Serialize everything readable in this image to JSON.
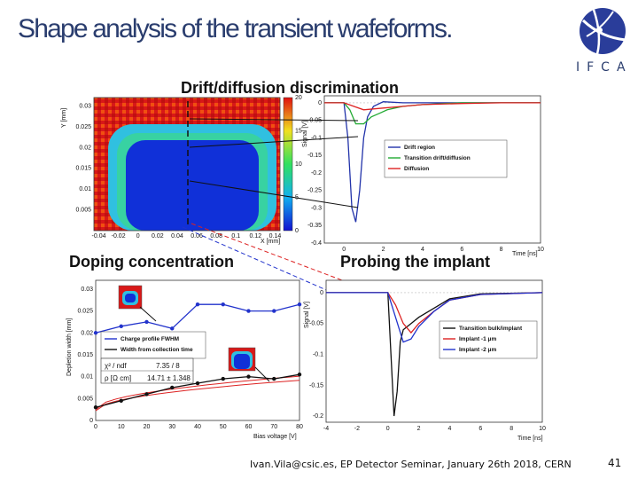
{
  "slide": {
    "title": "Shape analysis of the  transient wafeforms.",
    "logo_text": "IFCA",
    "footer": "Ivan.Vila@csic.es, EP Detector Seminar, January 26th 2018, CERN",
    "page_number": "41"
  },
  "panels": {
    "drift_title": "Drift/diffusion discrimination",
    "doping_title": "Doping concentration",
    "probing_title": "Probing the implant"
  },
  "chart_data": [
    {
      "type": "heatmap",
      "ylabel": "Y [mm]",
      "xlabel": "X [mm]",
      "xlim": [
        -0.045,
        0.145
      ],
      "ylim": [
        0,
        0.032
      ],
      "x_ticks": [
        "-0.04",
        "-0.02",
        "0",
        "0.02",
        "0.04",
        "0.06",
        "0.08",
        "0.1",
        "0.12",
        "0.14"
      ],
      "y_ticks": [
        "0.005",
        "0.01",
        "0.015",
        "0.02",
        "0.025",
        "0.03"
      ],
      "colorbar_ticks": [
        "0",
        "5",
        "10",
        "15",
        "20"
      ],
      "colorbar_range": [
        0,
        20
      ]
    },
    {
      "type": "line",
      "ylabel": "Signal [V]",
      "xlabel": "Time [ns]",
      "xlim": [
        -1,
        10
      ],
      "ylim": [
        -0.4,
        0.02
      ],
      "x_ticks": [
        "0",
        "2",
        "4",
        "6",
        "8",
        "10"
      ],
      "y_ticks": [
        "0",
        "-0.05",
        "-0.1",
        "-0.15",
        "-0.2",
        "-0.25",
        "-0.3",
        "-0.35",
        "-0.4"
      ],
      "legend": "right",
      "colors": [
        "#2233aa",
        "#22aa33",
        "#dd2222"
      ],
      "series": [
        {
          "name": "Drift region",
          "x": [
            -1,
            0,
            0.2,
            0.4,
            0.6,
            0.8,
            1,
            1.2,
            1.5,
            2,
            3,
            4,
            6,
            8,
            10
          ],
          "values": [
            0,
            0,
            -0.1,
            -0.3,
            -0.34,
            -0.25,
            -0.1,
            -0.04,
            -0.01,
            0.003,
            0,
            0,
            0,
            0,
            0
          ]
        },
        {
          "name": "Transition drift/diffusion",
          "x": [
            -1,
            0,
            0.3,
            0.6,
            1,
            1.4,
            1.8,
            2.2,
            3,
            4,
            6,
            8,
            10
          ],
          "values": [
            0,
            0,
            -0.02,
            -0.06,
            -0.06,
            -0.04,
            -0.03,
            -0.02,
            -0.01,
            -0.005,
            0,
            0,
            0
          ]
        },
        {
          "name": "Diffusion",
          "x": [
            -1,
            0,
            0.5,
            1,
            2,
            3,
            4,
            6,
            8,
            10
          ],
          "values": [
            0,
            0,
            -0.01,
            -0.02,
            -0.015,
            -0.01,
            -0.005,
            -0.002,
            0,
            0
          ]
        }
      ]
    },
    {
      "type": "line",
      "ylabel": "Depletion width [mm]",
      "xlabel": "Bias voltage [V]",
      "xlim": [
        0,
        80
      ],
      "ylim": [
        0,
        0.032
      ],
      "x_ticks": [
        "0",
        "10",
        "20",
        "30",
        "40",
        "50",
        "60",
        "70",
        "80"
      ],
      "y_ticks": [
        "0",
        "0.005",
        "0.01",
        "0.015",
        "0.02",
        "0.025",
        "0.03"
      ],
      "legend": "middle-left",
      "colors": [
        "#2233cc",
        "#111111",
        "#dd2222"
      ],
      "series": [
        {
          "name": "Charge profile FWHM",
          "x": [
            0,
            10,
            20,
            30,
            40,
            50,
            60,
            70,
            80
          ],
          "values": [
            0.02,
            0.0215,
            0.0225,
            0.021,
            0.0265,
            0.0265,
            0.025,
            0.025,
            0.0265
          ]
        },
        {
          "name": "Width from collection time",
          "x": [
            0,
            10,
            20,
            30,
            40,
            50,
            60,
            70,
            80
          ],
          "values": [
            0.003,
            0.0045,
            0.006,
            0.0075,
            0.0085,
            0.0095,
            0.01,
            0.0095,
            0.0105
          ]
        }
      ],
      "fit_box": {
        "chi2_label": "χ² / ndf",
        "chi2_value": "7.35 / 8",
        "rho_label": "ρ [Ω cm]",
        "rho_value": "14.71 ± 1.348"
      }
    },
    {
      "type": "line",
      "ylabel": "Signal [V]",
      "xlabel": "Time [ns]",
      "xlim": [
        -4,
        10
      ],
      "ylim": [
        -0.21,
        0.02
      ],
      "x_ticks": [
        "-4",
        "-2",
        "0",
        "2",
        "4",
        "6",
        "8",
        "10"
      ],
      "y_ticks": [
        "0",
        "-0.05",
        "-0.1",
        "-0.15",
        "-0.2"
      ],
      "legend": "right",
      "colors": [
        "#111111",
        "#dd2222",
        "#2233cc"
      ],
      "series": [
        {
          "name": "Transition bulk/implant",
          "x": [
            -4,
            0,
            0.2,
            0.4,
            0.6,
            0.8,
            1,
            1.5,
            2,
            3,
            4,
            6,
            10
          ],
          "values": [
            0,
            0,
            -0.1,
            -0.2,
            -0.16,
            -0.08,
            -0.06,
            -0.05,
            -0.04,
            -0.025,
            -0.01,
            -0.002,
            0
          ]
        },
        {
          "name": "Implant -1 μm",
          "x": [
            -4,
            0,
            0.5,
            1,
            1.5,
            2,
            3,
            4,
            6,
            10
          ],
          "values": [
            0,
            0,
            -0.02,
            -0.05,
            -0.065,
            -0.05,
            -0.03,
            -0.012,
            -0.003,
            0
          ]
        },
        {
          "name": "Implant -2 μm",
          "x": [
            -4,
            0,
            0.5,
            1,
            1.5,
            2,
            3,
            4,
            6,
            10
          ],
          "values": [
            0,
            0,
            -0.04,
            -0.08,
            -0.075,
            -0.055,
            -0.03,
            -0.012,
            -0.003,
            0
          ]
        }
      ]
    }
  ]
}
